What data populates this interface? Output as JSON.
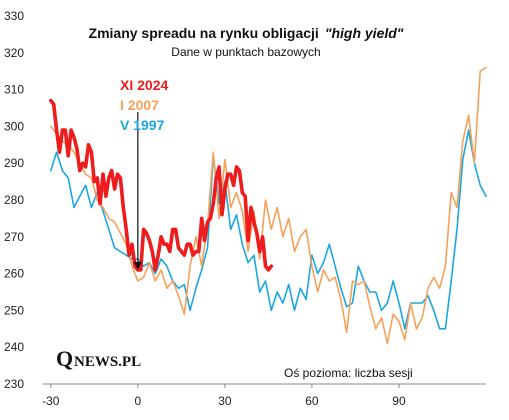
{
  "chart_data": {
    "type": "line",
    "title_main": "Zmiany spreadu na rynku obligacji",
    "title_italic": "\"high yield\"",
    "subtitle": "Dane w punktach bazowych",
    "note": "Oś pozioma: liczba sesji",
    "logo": {
      "q": "Q",
      "rest": "NEWS.PL"
    },
    "xlim": [
      -32,
      120
    ],
    "ylim": [
      230,
      330
    ],
    "x_ticks": [
      -30,
      0,
      30,
      60,
      90
    ],
    "y_ticks": [
      230,
      240,
      250,
      260,
      270,
      280,
      290,
      300,
      310,
      320,
      330
    ],
    "marker_x": 0,
    "series": [
      {
        "name": "XI 2024",
        "color": "#ee1c1c",
        "x": [
          -30,
          -29,
          -28,
          -27,
          -26,
          -25,
          -24,
          -23,
          -22,
          -21,
          -20,
          -19,
          -18,
          -17,
          -16,
          -15,
          -14,
          -13,
          -12,
          -11,
          -10,
          -9,
          -8,
          -7,
          -6,
          -5,
          -4,
          -3,
          -2,
          -1,
          0,
          1,
          2,
          3,
          4,
          5,
          6,
          7,
          8,
          9,
          10,
          11,
          12,
          13,
          14,
          15,
          16,
          17,
          18,
          19,
          20,
          21,
          22,
          23,
          24,
          25,
          26,
          27,
          28,
          29,
          30,
          31,
          32,
          33,
          34,
          35,
          36,
          37,
          38,
          39,
          40,
          41,
          42,
          43,
          44,
          45,
          46
        ],
        "y": [
          307,
          306,
          299,
          293,
          299,
          299,
          292,
          299,
          297,
          294,
          288,
          290,
          289,
          295,
          293,
          285,
          286,
          279,
          287,
          281,
          286,
          288,
          283,
          287,
          286,
          278,
          272,
          265,
          268,
          262,
          261,
          261,
          272,
          271,
          269,
          266,
          261,
          265,
          270,
          268,
          268,
          266,
          272,
          272,
          267,
          266,
          265,
          268,
          268,
          265,
          266,
          266,
          275,
          269,
          274,
          275,
          279,
          286,
          289,
          276,
          283,
          287,
          287,
          284,
          289,
          288,
          282,
          281,
          269,
          278,
          274,
          271,
          266,
          270,
          262,
          261,
          262
        ]
      },
      {
        "name": "I 2007",
        "color": "#f5a15a",
        "x": [
          -30,
          -28,
          -26,
          -24,
          -22,
          -20,
          -18,
          -16,
          -14,
          -12,
          -10,
          -8,
          -6,
          -4,
          -2,
          0,
          2,
          4,
          6,
          8,
          10,
          12,
          14,
          16,
          18,
          20,
          22,
          24,
          26,
          28,
          30,
          32,
          34,
          36,
          38,
          40,
          42,
          44,
          46,
          48,
          50,
          52,
          54,
          56,
          58,
          60,
          62,
          64,
          66,
          68,
          70,
          72,
          74,
          76,
          78,
          80,
          82,
          84,
          86,
          88,
          90,
          92,
          94,
          96,
          98,
          100,
          102,
          104,
          106,
          108,
          110,
          112,
          114,
          116,
          118,
          120
        ],
        "y": [
          300,
          298,
          296,
          295,
          293,
          290,
          287,
          286,
          280,
          278,
          275,
          274,
          271,
          268,
          262,
          258,
          259,
          263,
          258,
          261,
          256,
          258,
          254,
          249,
          262,
          270,
          262,
          273,
          293,
          275,
          291,
          278,
          282,
          277,
          266,
          277,
          264,
          280,
          272,
          278,
          270,
          275,
          266,
          270,
          272,
          262,
          255,
          261,
          258,
          259,
          253,
          244,
          258,
          257,
          258,
          251,
          245,
          248,
          241,
          249,
          247,
          242,
          252,
          245,
          248,
          256,
          259,
          256,
          262,
          282,
          278,
          296,
          303,
          290,
          315,
          316
        ]
      },
      {
        "name": "V 1997",
        "color": "#1ba7e1",
        "x": [
          -30,
          -28,
          -26,
          -24,
          -22,
          -20,
          -18,
          -16,
          -14,
          -12,
          -10,
          -8,
          -6,
          -4,
          -2,
          0,
          2,
          4,
          6,
          8,
          10,
          12,
          14,
          16,
          18,
          20,
          22,
          24,
          26,
          28,
          30,
          32,
          34,
          36,
          38,
          40,
          42,
          44,
          46,
          48,
          50,
          52,
          54,
          56,
          58,
          60,
          62,
          64,
          66,
          68,
          70,
          72,
          74,
          76,
          78,
          80,
          82,
          84,
          86,
          88,
          90,
          92,
          94,
          96,
          98,
          100,
          102,
          104,
          106,
          108,
          110,
          112,
          114,
          116,
          118,
          120
        ],
        "y": [
          288,
          293,
          288,
          286,
          278,
          281,
          284,
          278,
          282,
          277,
          272,
          267,
          266,
          265,
          264,
          264,
          262,
          263,
          260,
          264,
          262,
          258,
          256,
          257,
          250,
          256,
          261,
          267,
          292,
          279,
          285,
          272,
          276,
          268,
          263,
          265,
          255,
          258,
          250,
          255,
          252,
          257,
          250,
          256,
          253,
          265,
          260,
          263,
          268,
          262,
          256,
          251,
          252,
          262,
          258,
          255,
          255,
          250,
          252,
          258,
          252,
          245,
          252,
          252,
          252,
          254,
          250,
          245,
          245,
          258,
          272,
          291,
          299,
          290,
          284,
          281
        ]
      }
    ]
  }
}
